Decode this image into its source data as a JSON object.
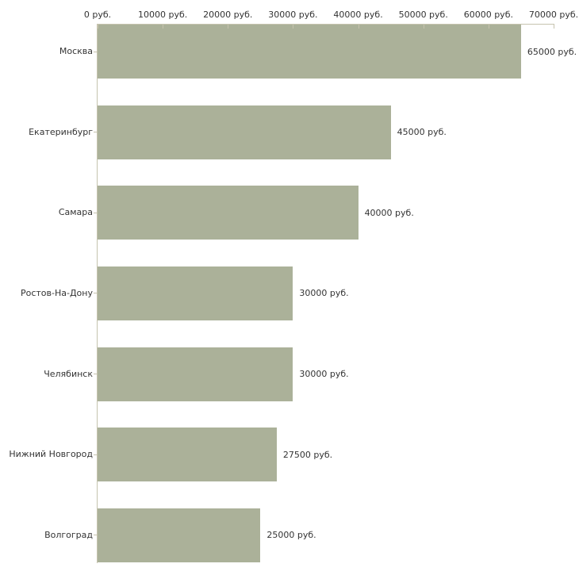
{
  "chart_data": {
    "type": "bar",
    "orientation": "horizontal",
    "title": "",
    "xlabel": "",
    "ylabel": "",
    "unit": "руб.",
    "xlim": [
      0,
      70000
    ],
    "grid": false,
    "legend_position": "none",
    "categories": [
      "Москва",
      "Екатеринбург",
      "Самара",
      "Ростов-На-Дону",
      "Челябинск",
      "Нижний Новгород",
      "Волгоград"
    ],
    "values": [
      65000,
      45000,
      40000,
      30000,
      30000,
      27500,
      25000
    ],
    "bar_value_labels": [
      "65000 руб.",
      "45000 руб.",
      "40000 руб.",
      "30000 руб.",
      "30000 руб.",
      "27500 руб.",
      "25000 руб."
    ],
    "x_tick_values": [
      0,
      10000,
      20000,
      30000,
      40000,
      50000,
      60000,
      70000
    ],
    "x_tick_labels": [
      "0 руб.",
      "10000 руб.",
      "20000 руб.",
      "30000 руб.",
      "40000 руб.",
      "50000 руб.",
      "60000 руб.",
      "70000 руб."
    ],
    "bar_color": "#abb199",
    "axis_color": "#c6c3ae",
    "text_color": "#333333",
    "background_color": "#ffffff"
  }
}
